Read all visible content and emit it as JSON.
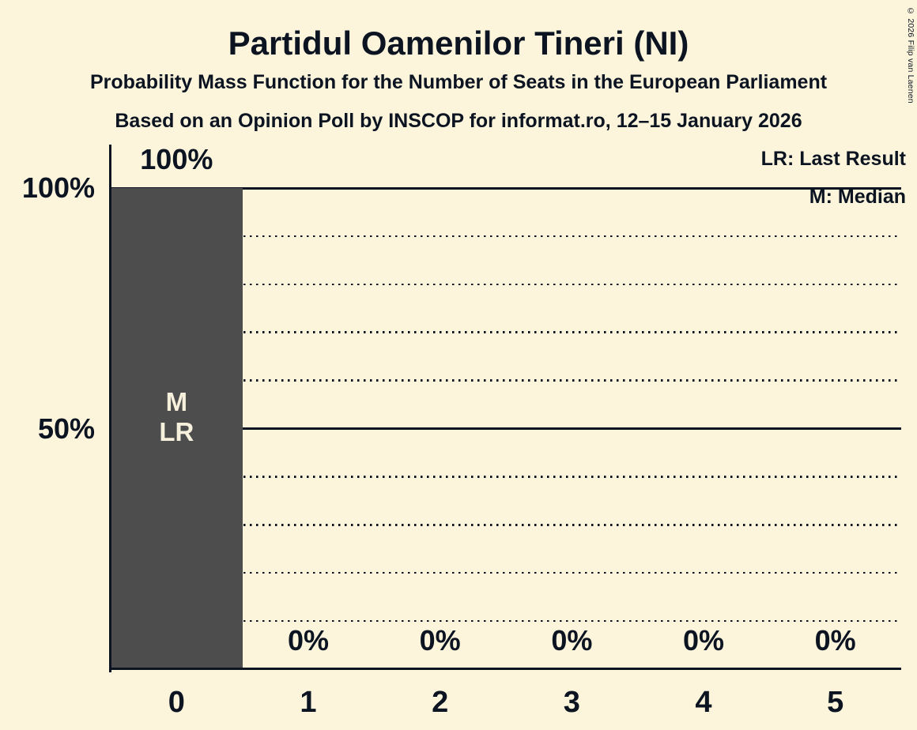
{
  "page": {
    "title": "Partidul Oamenilor Tineri (NI)",
    "subtitle": "Probability Mass Function for the Number of Seats in the European Parliament",
    "source_line": "Based on an Opinion Poll by INSCOP for informat.ro, 12–15 January 2026",
    "copyright": "© 2026 Filip van Laenen"
  },
  "legend": {
    "last_result_label": "LR: Last Result",
    "median_label": "M: Median"
  },
  "colors": {
    "background": "#FCF5DC",
    "text": "#0C1422",
    "bar": "#4D4D4D",
    "bar_label_text": "#F7F0DC"
  },
  "chart_data": {
    "type": "bar",
    "title": "Partidul Oamenilor Tineri (NI)",
    "xlabel": "",
    "ylabel": "",
    "categories": [
      "0",
      "1",
      "2",
      "3",
      "4",
      "5"
    ],
    "values": [
      100,
      0,
      0,
      0,
      0,
      0
    ],
    "value_labels": [
      "100%",
      "0%",
      "0%",
      "0%",
      "0%",
      "0%"
    ],
    "bar_annotations": [
      [
        "M",
        "LR"
      ],
      [],
      [],
      [],
      [],
      []
    ],
    "ylim": [
      0,
      100
    ],
    "yticks": [
      {
        "value": 100,
        "label": "100%"
      },
      {
        "value": 50,
        "label": "50%"
      }
    ],
    "gridlines": {
      "solid": [
        100,
        50
      ],
      "dotted": [
        90,
        80,
        70,
        60,
        40,
        30,
        20,
        10
      ]
    },
    "legend_position": "top-right",
    "grid": "horizontal"
  }
}
